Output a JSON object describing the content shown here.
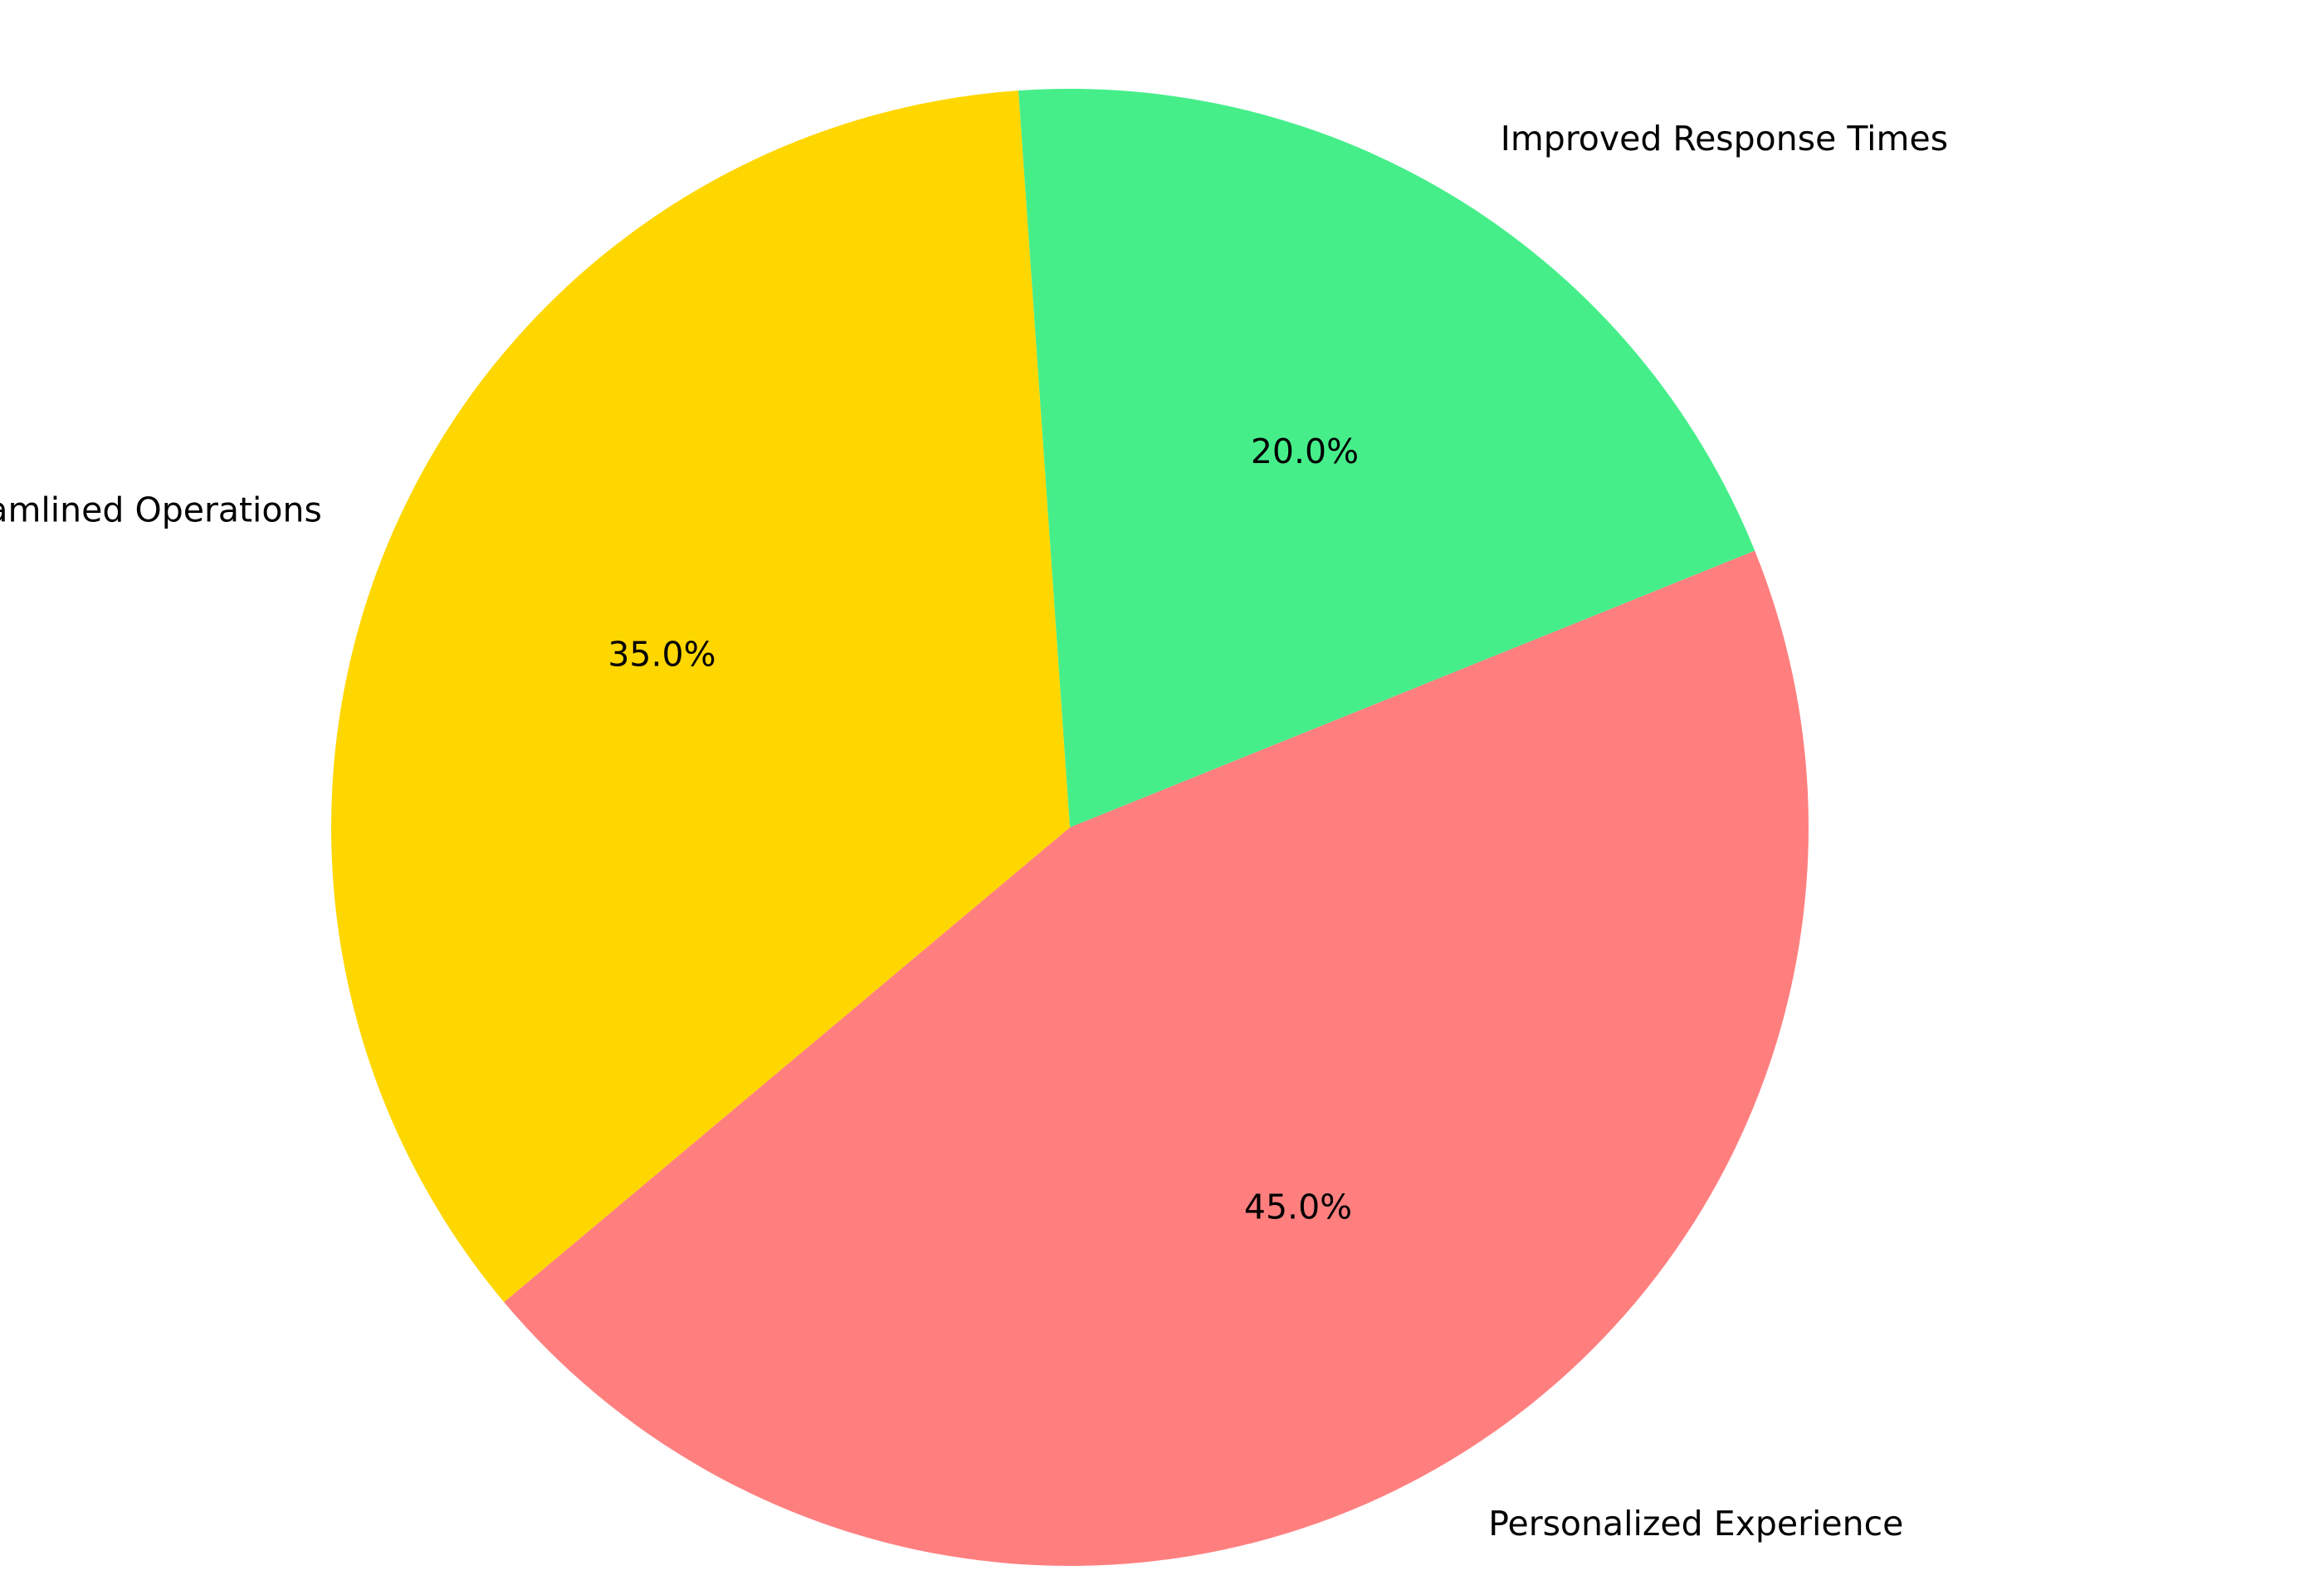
{
  "chart_data": {
    "type": "pie",
    "categories": [
      "Personalized Experience",
      "Improved Response Times",
      "Streamlined Operations"
    ],
    "values": [
      45,
      20,
      35
    ],
    "value_labels": [
      "45.0%",
      "20.0%",
      "35.0%"
    ],
    "colors": [
      "#ff7f7f",
      "#46ee8a",
      "#ffd700"
    ],
    "start_angle_deg": 220,
    "direction": "counterclockwise",
    "title": "",
    "legend": "none"
  }
}
